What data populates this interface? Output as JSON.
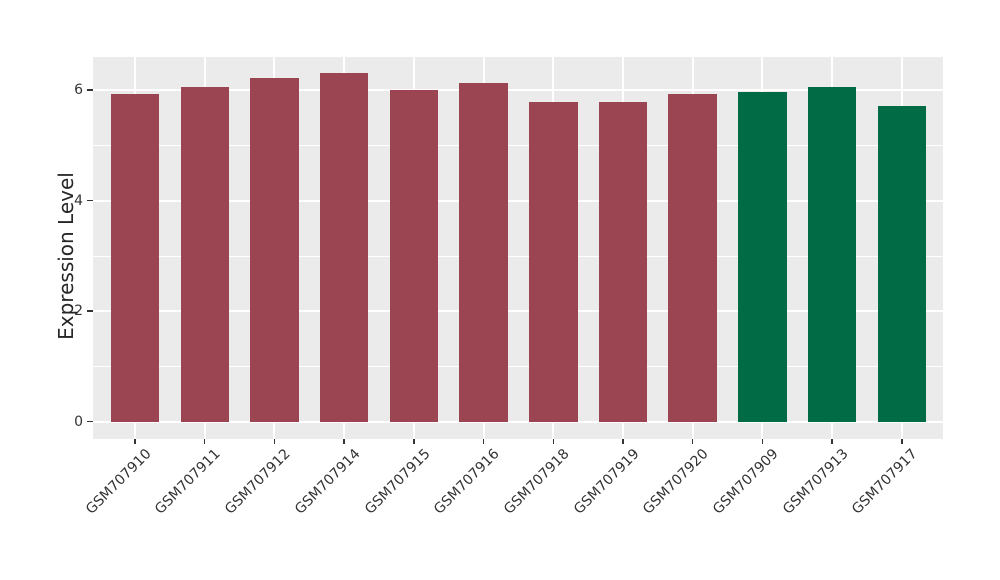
{
  "chart_data": {
    "type": "bar",
    "title": "",
    "xlabel": "",
    "ylabel": "Expression Level",
    "categories": [
      "GSM707910",
      "GSM707911",
      "GSM707912",
      "GSM707914",
      "GSM707915",
      "GSM707916",
      "GSM707918",
      "GSM707919",
      "GSM707920",
      "GSM707909",
      "GSM707913",
      "GSM707917"
    ],
    "values": [
      5.92,
      6.06,
      6.22,
      6.3,
      6.01,
      6.13,
      5.79,
      5.78,
      5.92,
      5.96,
      6.05,
      5.72
    ],
    "bar_colors": [
      "#9A4551",
      "#9A4551",
      "#9A4551",
      "#9A4551",
      "#9A4551",
      "#9A4551",
      "#9A4551",
      "#9A4551",
      "#9A4551",
      "#006B45",
      "#006B45",
      "#006B45"
    ],
    "group_colors": {
      "maroon_group": "#9A4551",
      "green_group": "#006B45"
    },
    "yticks": [
      0,
      2,
      4,
      6
    ],
    "yticks_minor": [
      1,
      3,
      5
    ],
    "ylim": [
      0,
      6.6
    ],
    "grid": true,
    "legend": false,
    "panel_bg": "#EBEBEB",
    "grid_color": "#FFFFFF",
    "tick_color": "#333333"
  }
}
